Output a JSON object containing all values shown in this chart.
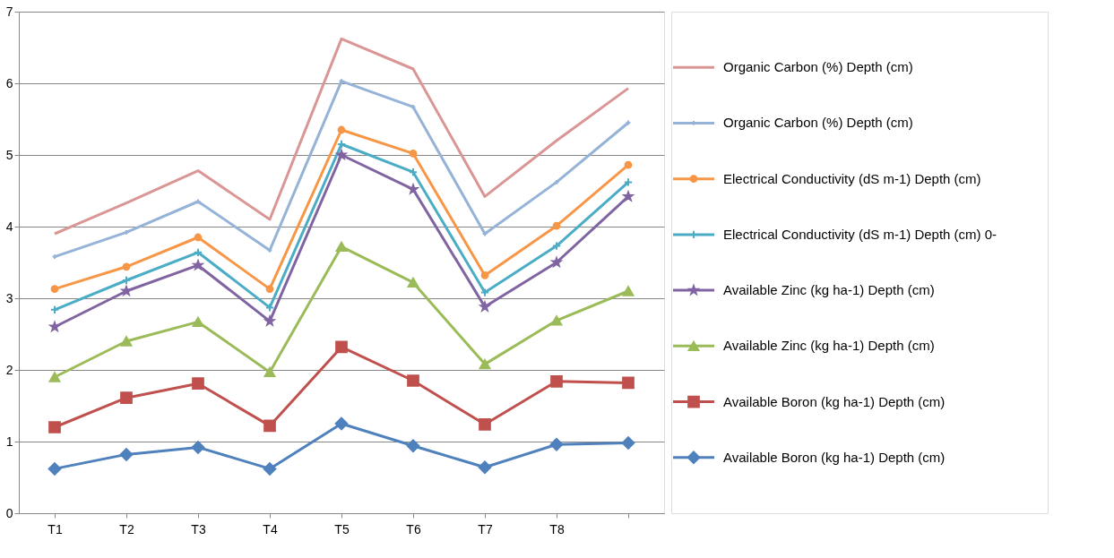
{
  "chart_data": {
    "type": "line",
    "categories": [
      "T1",
      "T2",
      "T3",
      "T4",
      "T5",
      "T6",
      "T7",
      "T8",
      null
    ],
    "ylim": [
      0,
      7
    ],
    "yticks": [
      0,
      1,
      2,
      3,
      4,
      5,
      6,
      7
    ],
    "grid": "y",
    "legend": "right",
    "series": [
      {
        "name": "Organic Carbon (%) Depth (cm)",
        "color": "#d99694",
        "marker": "none",
        "values": [
          3.9,
          4.33,
          4.78,
          4.1,
          6.62,
          6.2,
          4.42,
          5.2,
          5.93
        ]
      },
      {
        "name": "Organic Carbon (%) Depth (cm)",
        "color": "#95b3d7",
        "marker": "cross",
        "values": [
          3.58,
          3.92,
          4.35,
          3.67,
          6.03,
          5.67,
          3.9,
          4.62,
          5.45
        ]
      },
      {
        "name": "Electrical Conductivity (dS m-1) Depth (cm)",
        "color": "#f79646",
        "marker": "circle",
        "values": [
          3.13,
          3.44,
          3.85,
          3.13,
          5.35,
          5.02,
          3.32,
          4.01,
          4.86
        ]
      },
      {
        "name": "Electrical Conductivity (dS m-1) Depth (cm) 0-",
        "color": "#4bacc6",
        "marker": "cross",
        "values": [
          2.84,
          3.25,
          3.64,
          2.87,
          5.15,
          4.76,
          3.08,
          3.73,
          4.62
        ]
      },
      {
        "name": "Available Zinc (kg ha-1) Depth (cm)",
        "color": "#8064a2",
        "marker": "star",
        "values": [
          2.6,
          3.1,
          3.46,
          2.68,
          5.0,
          4.52,
          2.88,
          3.5,
          4.42
        ]
      },
      {
        "name": "Available Zinc (kg ha-1) Depth (cm)",
        "color": "#9bbb59",
        "marker": "triangle",
        "values": [
          1.9,
          2.4,
          2.67,
          1.97,
          3.72,
          3.22,
          2.08,
          2.69,
          3.1
        ]
      },
      {
        "name": "Available Boron (kg ha-1) Depth (cm)",
        "color": "#c0504d",
        "marker": "square",
        "values": [
          1.2,
          1.61,
          1.81,
          1.22,
          2.32,
          1.85,
          1.24,
          1.84,
          1.82
        ]
      },
      {
        "name": "Available Boron (kg ha-1) Depth (cm)",
        "color": "#4f81bd",
        "marker": "diamond",
        "values": [
          0.62,
          0.82,
          0.92,
          0.62,
          1.25,
          0.94,
          0.64,
          0.96,
          0.98
        ]
      }
    ]
  }
}
